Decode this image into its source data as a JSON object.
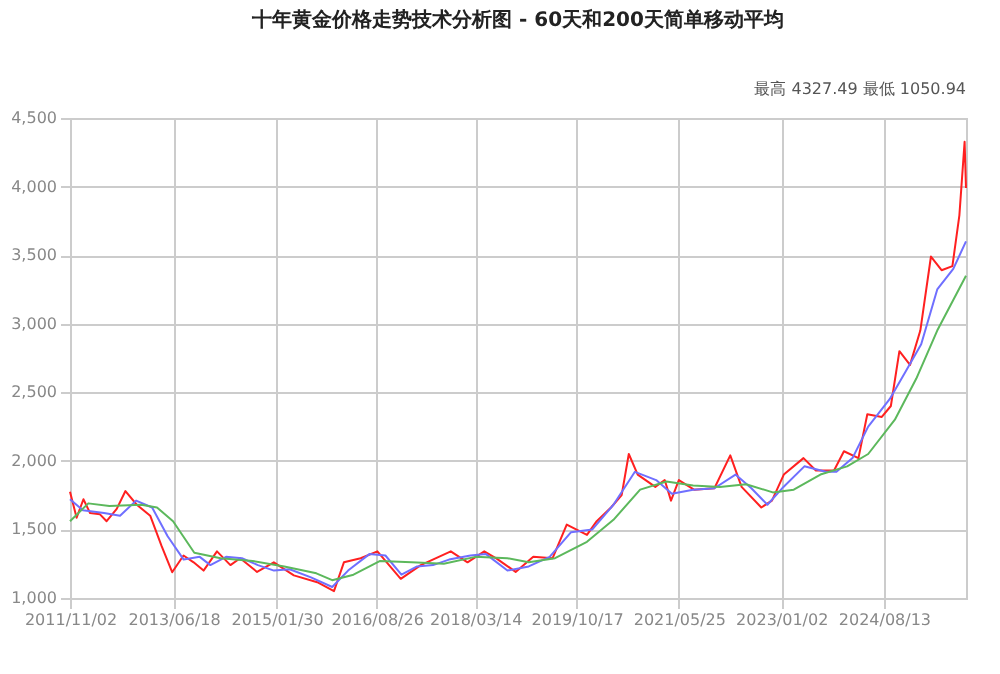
{
  "chart_data": {
    "type": "line",
    "title": "十年黄金价格走势技术分析图 - 60天和200天简单移动平均",
    "annotations": [
      "最高 4327.49 最低 1050.94"
    ],
    "xlim": [
      "2011-11-02",
      "2025-11-27"
    ],
    "xticks": [
      {
        "value": "2011-11-02",
        "label": "2011/11/02"
      },
      {
        "value": "2013-06-18",
        "label": "2013/06/18"
      },
      {
        "value": "2015-01-30",
        "label": "2015/01/30"
      },
      {
        "value": "2016-08-26",
        "label": "2016/08/26"
      },
      {
        "value": "2018-03-14",
        "label": "2018/03/14"
      },
      {
        "value": "2019-10-17",
        "label": "2019/10/17"
      },
      {
        "value": "2021-05-25",
        "label": "2021/05/25"
      },
      {
        "value": "2023-01-02",
        "label": "2023/01/02"
      },
      {
        "value": "2024-08-13",
        "label": "2024/08/13"
      }
    ],
    "ylim": [
      1000,
      4500
    ],
    "yticks": [
      {
        "value": 1000,
        "label": "1,000"
      },
      {
        "value": 1500,
        "label": "1,500"
      },
      {
        "value": 2000,
        "label": "2,000"
      },
      {
        "value": 2500,
        "label": "2,500"
      },
      {
        "value": 3000,
        "label": "3,000"
      },
      {
        "value": 3500,
        "label": "3,500"
      },
      {
        "value": 4000,
        "label": "4,000"
      },
      {
        "value": 4500,
        "label": "4,500"
      }
    ],
    "grid": true,
    "series": [
      {
        "color": "#ff2020",
        "x": [
          "2011-11-02",
          "2011-12-10",
          "2012-01-18",
          "2012-02-25",
          "2012-04-22",
          "2012-05-30",
          "2012-07-27",
          "2012-09-15",
          "2012-11-19",
          "2013-02-04",
          "2013-04-10",
          "2013-06-10",
          "2013-08-14",
          "2013-10-11",
          "2013-12-07",
          "2014-02-22",
          "2014-05-10",
          "2014-07-05",
          "2014-10-10",
          "2015-01-14",
          "2015-05-09",
          "2015-09-20",
          "2015-12-25",
          "2016-02-20",
          "2016-05-26",
          "2016-08-30",
          "2017-01-11",
          "2017-05-06",
          "2017-10-25",
          "2018-01-29",
          "2018-05-05",
          "2018-07-15",
          "2018-11-01",
          "2019-02-10",
          "2019-06-01",
          "2019-08-21",
          "2019-12-15",
          "2020-02-09",
          "2020-05-01",
          "2020-07-01",
          "2020-08-11",
          "2020-10-01",
          "2021-01-10",
          "2021-03-05",
          "2021-04-10",
          "2021-05-25",
          "2021-08-20",
          "2021-12-15",
          "2022-03-16",
          "2022-05-20",
          "2022-09-10",
          "2022-11-10",
          "2023-01-17",
          "2023-05-10",
          "2023-07-20",
          "2023-11-01",
          "2023-12-28",
          "2024-03-20",
          "2024-05-10",
          "2024-08-01",
          "2024-09-22",
          "2024-11-10",
          "2025-01-10",
          "2025-03-10",
          "2025-05-10",
          "2025-07-10",
          "2025-09-10",
          "2025-10-20",
          "2025-11-19",
          "2025-11-27"
        ],
        "values": [
          1775,
          1585,
          1720,
          1620,
          1610,
          1560,
          1650,
          1780,
          1680,
          1600,
          1380,
          1188,
          1310,
          1260,
          1200,
          1340,
          1240,
          1290,
          1190,
          1260,
          1165,
          1115,
          1050,
          1260,
          1290,
          1340,
          1140,
          1240,
          1340,
          1260,
          1340,
          1287,
          1190,
          1300,
          1290,
          1535,
          1460,
          1560,
          1660,
          1750,
          2050,
          1900,
          1810,
          1860,
          1710,
          1860,
          1790,
          1800,
          2040,
          1810,
          1660,
          1710,
          1900,
          2020,
          1930,
          1930,
          2070,
          2020,
          2340,
          2320,
          2400,
          2800,
          2700,
          2950,
          3490,
          3390,
          3420,
          3790,
          4327,
          3990
        ]
      },
      {
        "color": "#6f6fff",
        "x": [
          "2011-11-02",
          "2012-01-15",
          "2012-05-15",
          "2012-08-15",
          "2012-11-15",
          "2013-02-15",
          "2013-05-15",
          "2013-08-15",
          "2013-11-15",
          "2014-01-15",
          "2014-04-15",
          "2014-07-15",
          "2014-10-15",
          "2015-01-15",
          "2015-04-15",
          "2015-08-15",
          "2015-12-15",
          "2016-03-15",
          "2016-07-15",
          "2016-10-15",
          "2017-01-15",
          "2017-04-15",
          "2017-07-15",
          "2017-10-15",
          "2018-02-15",
          "2018-05-15",
          "2018-09-15",
          "2019-01-15",
          "2019-05-15",
          "2019-09-15",
          "2020-01-15",
          "2020-05-15",
          "2020-09-15",
          "2021-01-15",
          "2021-04-15",
          "2021-08-15",
          "2021-12-15",
          "2022-04-15",
          "2022-07-15",
          "2022-10-15",
          "2023-01-15",
          "2023-05-15",
          "2023-09-15",
          "2023-11-15",
          "2024-02-15",
          "2024-05-15",
          "2024-09-15",
          "2024-12-15",
          "2025-03-15",
          "2025-06-15",
          "2025-09-15",
          "2025-11-27"
        ],
        "values": [
          1720,
          1640,
          1620,
          1600,
          1710,
          1660,
          1450,
          1280,
          1300,
          1240,
          1300,
          1290,
          1240,
          1200,
          1210,
          1150,
          1080,
          1200,
          1320,
          1310,
          1170,
          1230,
          1240,
          1280,
          1310,
          1320,
          1200,
          1230,
          1300,
          1480,
          1500,
          1680,
          1920,
          1860,
          1760,
          1790,
          1800,
          1900,
          1800,
          1680,
          1810,
          1960,
          1920,
          1920,
          2020,
          2250,
          2450,
          2650,
          2850,
          3250,
          3400,
          3600
        ]
      },
      {
        "color": "#5cb85c",
        "x": [
          "2011-11-02",
          "2012-02-15",
          "2012-06-15",
          "2012-12-15",
          "2013-03-15",
          "2013-06-15",
          "2013-10-15",
          "2014-03-15",
          "2014-09-15",
          "2015-03-15",
          "2015-09-15",
          "2015-12-15",
          "2016-04-15",
          "2016-09-15",
          "2017-03-15",
          "2017-09-15",
          "2018-03-15",
          "2018-09-15",
          "2019-01-15",
          "2019-06-15",
          "2019-12-15",
          "2020-05-15",
          "2020-10-15",
          "2021-03-15",
          "2021-08-15",
          "2022-01-15",
          "2022-06-15",
          "2022-11-15",
          "2023-03-15",
          "2023-08-15",
          "2024-01-15",
          "2024-05-15",
          "2024-10-15",
          "2025-02-15",
          "2025-06-15",
          "2025-11-27"
        ],
        "values": [
          1560,
          1690,
          1670,
          1680,
          1660,
          1560,
          1330,
          1290,
          1270,
          1230,
          1180,
          1130,
          1170,
          1270,
          1260,
          1250,
          1300,
          1290,
          1260,
          1290,
          1410,
          1570,
          1790,
          1850,
          1820,
          1810,
          1830,
          1770,
          1790,
          1900,
          1960,
          2050,
          2300,
          2600,
          2950,
          3350
        ]
      }
    ]
  }
}
